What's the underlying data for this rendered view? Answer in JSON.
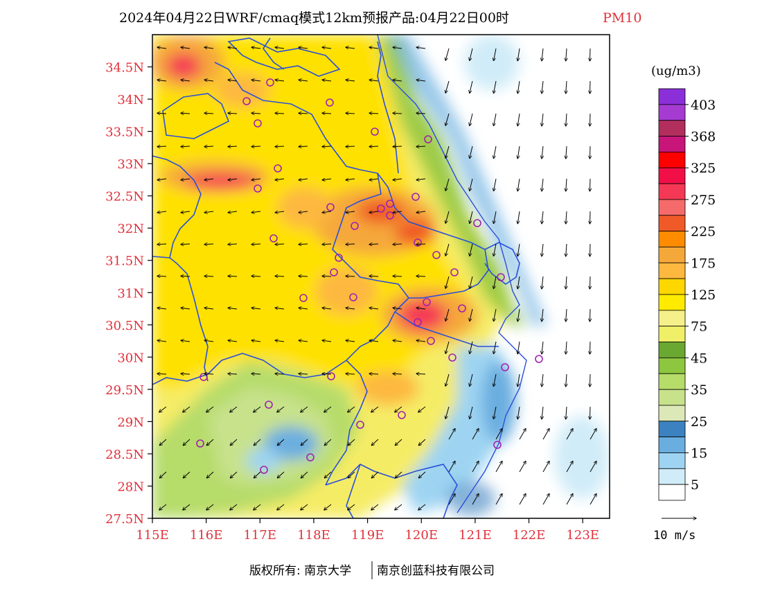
{
  "title": {
    "main": "2024年04月22日WRF/cmaq模式12km预报产品:04月22日00时",
    "species": "PM10"
  },
  "axes": {
    "lat_labels": [
      "34.5N",
      "34N",
      "33.5N",
      "33N",
      "32.5N",
      "32N",
      "31.5N",
      "31N",
      "30.5N",
      "30N",
      "29.5N",
      "29N",
      "28.5N",
      "28N",
      "27.5N"
    ],
    "lat_values": [
      34.5,
      34,
      33.5,
      33,
      32.5,
      32,
      31.5,
      31,
      30.5,
      30,
      29.5,
      29,
      28.5,
      28,
      27.5
    ],
    "lon_labels": [
      "115E",
      "116E",
      "117E",
      "118E",
      "119E",
      "120E",
      "121E",
      "122E",
      "123E"
    ],
    "lon_values": [
      115,
      116,
      117,
      118,
      119,
      120,
      121,
      122,
      123
    ],
    "lon_range": [
      115,
      123.5
    ],
    "lat_range": [
      27.5,
      35
    ]
  },
  "legend": {
    "unit": "(ug/m3)",
    "labels": [
      "403",
      "368",
      "325",
      "275",
      "225",
      "175",
      "125",
      "75",
      "45",
      "35",
      "25",
      "15",
      "5"
    ],
    "colors": [
      "#8b2fd9",
      "#a63bd1",
      "#b12e5d",
      "#c8157a",
      "#ff0000",
      "#f20f48",
      "#f53855",
      "#f56a6a",
      "#f05a28",
      "#ff8c00",
      "#f5a83a",
      "#fdb83f",
      "#ffd700",
      "#ffeb00",
      "#f5f08a",
      "#f0f068",
      "#6aa832",
      "#8dc63f",
      "#b6dc6a",
      "#c8e28c",
      "#dde8b8",
      "#3c82c0",
      "#6aaee0",
      "#9ed4f2",
      "#d0ecf8",
      "#ffffff"
    ]
  },
  "wind_legend": {
    "label": "10 m/s"
  },
  "footer": {
    "copyright": "版权所有: 南京大学",
    "company": "南京创蓝科技有限公司"
  }
}
